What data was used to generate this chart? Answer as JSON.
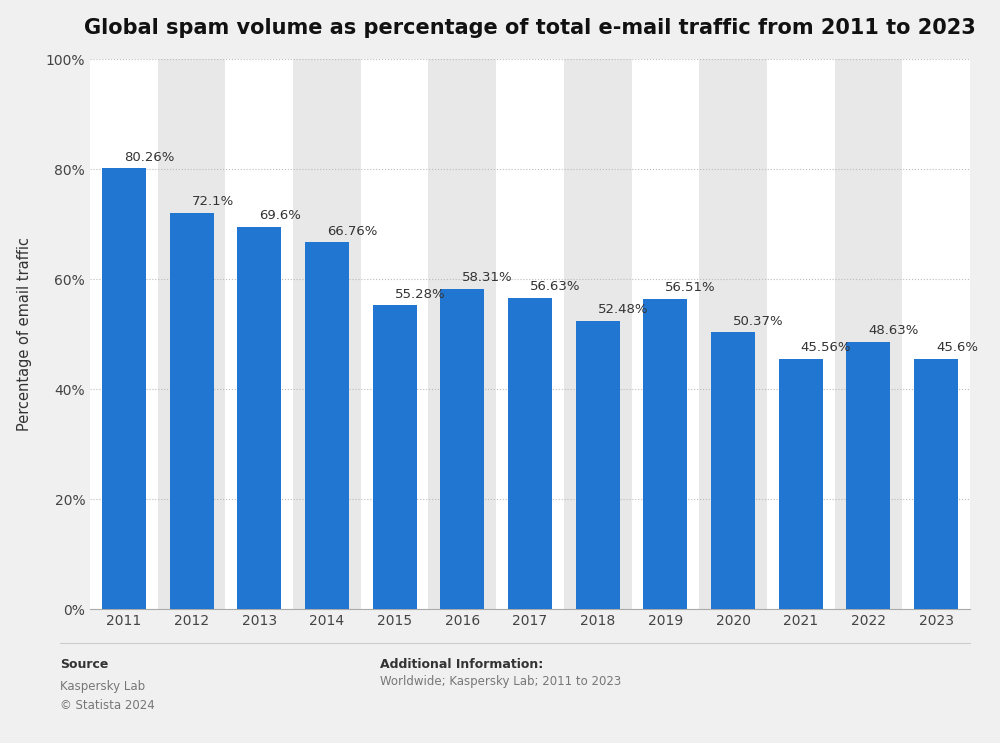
{
  "title": "Global spam volume as percentage of total e-mail traffic from 2011 to 2023",
  "years": [
    2011,
    2012,
    2013,
    2014,
    2015,
    2016,
    2017,
    2018,
    2019,
    2020,
    2021,
    2022,
    2023
  ],
  "values": [
    80.26,
    72.1,
    69.6,
    66.76,
    55.28,
    58.31,
    56.63,
    52.48,
    56.51,
    50.37,
    45.56,
    48.63,
    45.6
  ],
  "labels": [
    "80.26%",
    "72.1%",
    "69.6%",
    "66.76%",
    "55.28%",
    "58.31%",
    "56.63%",
    "52.48%",
    "56.51%",
    "50.37%",
    "45.56%",
    "48.63%",
    "45.6%"
  ],
  "bar_color": "#2176d2",
  "figure_background": "#f0f0f0",
  "plot_background": "#ffffff",
  "column_band_color": "#e8e8e8",
  "ylabel": "Percentage of email traffic",
  "ylim": [
    0,
    100
  ],
  "yticks": [
    0,
    20,
    40,
    60,
    80,
    100
  ],
  "ytick_labels": [
    "0%",
    "20%",
    "40%",
    "60%",
    "80%",
    "100%"
  ],
  "grid_color": "#bbbbbb",
  "title_fontsize": 15,
  "label_fontsize": 9.5,
  "tick_fontsize": 10,
  "ylabel_fontsize": 10.5,
  "source_label": "Source",
  "source_body": "Kaspersky Lab\n© Statista 2024",
  "additional_label": "Additional Information:",
  "additional_body": "Worldwide; Kaspersky Lab; 2011 to 2023"
}
